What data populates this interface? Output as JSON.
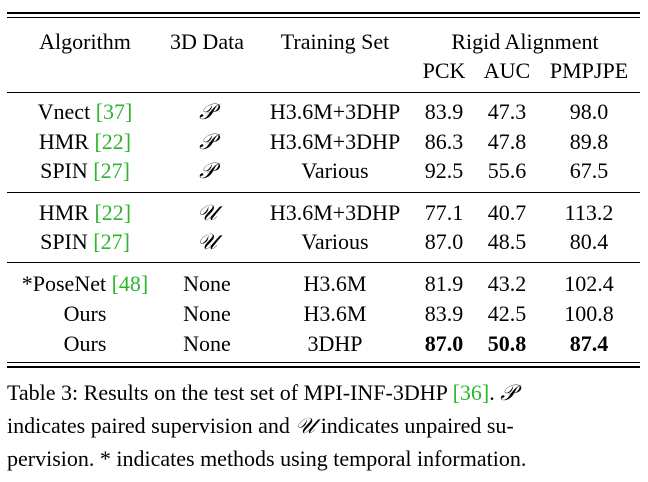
{
  "table": {
    "header": {
      "algorithm": "Algorithm",
      "data3d": "3D Data",
      "training": "Training Set",
      "rigid": "Rigid Alignment",
      "pck": "PCK",
      "auc": "AUC",
      "pmpjpe": "PMPJPE"
    },
    "rows": [
      {
        "name": "Vnect",
        "ref": "[37]",
        "data": "𝒫",
        "train": "H3.6M+3DHP",
        "pck": "83.9",
        "auc": "47.3",
        "pmpjpe": "98.0"
      },
      {
        "name": "HMR",
        "ref": "[22]",
        "data": "𝒫",
        "train": "H3.6M+3DHP",
        "pck": "86.3",
        "auc": "47.8",
        "pmpjpe": "89.8"
      },
      {
        "name": "SPIN",
        "ref": "[27]",
        "data": "𝒫",
        "train": "Various",
        "pck": "92.5",
        "auc": "55.6",
        "pmpjpe": "67.5"
      },
      {
        "name": "HMR",
        "ref": "[22]",
        "data": "𝒰",
        "train": "H3.6M+3DHP",
        "pck": "77.1",
        "auc": "40.7",
        "pmpjpe": "113.2"
      },
      {
        "name": "SPIN",
        "ref": "[27]",
        "data": "𝒰",
        "train": "Various",
        "pck": "87.0",
        "auc": "48.5",
        "pmpjpe": "80.4"
      },
      {
        "name": "*PoseNet",
        "ref": "[48]",
        "data": "None",
        "train": "H3.6M",
        "pck": "81.9",
        "auc": "43.2",
        "pmpjpe": "102.4"
      },
      {
        "name": "Ours",
        "ref": "",
        "data": "None",
        "train": "H3.6M",
        "pck": "83.9",
        "auc": "42.5",
        "pmpjpe": "100.8"
      },
      {
        "name": "Ours",
        "ref": "",
        "data": "None",
        "train": "3DHP",
        "pck": "87.0",
        "auc": "50.8",
        "pmpjpe": "87.4"
      }
    ]
  },
  "caption": {
    "l1a": "Table 3: Results on the test set of MPI-INF-3DHP ",
    "l1ref": "[36]",
    "l1b": ". ",
    "p_sym": "𝒫",
    "l2a": "indicates paired supervision and ",
    "u_sym": "𝒰",
    "l2b": " indicates unpaired su-",
    "l3": "pervision. * indicates methods using temporal information."
  }
}
